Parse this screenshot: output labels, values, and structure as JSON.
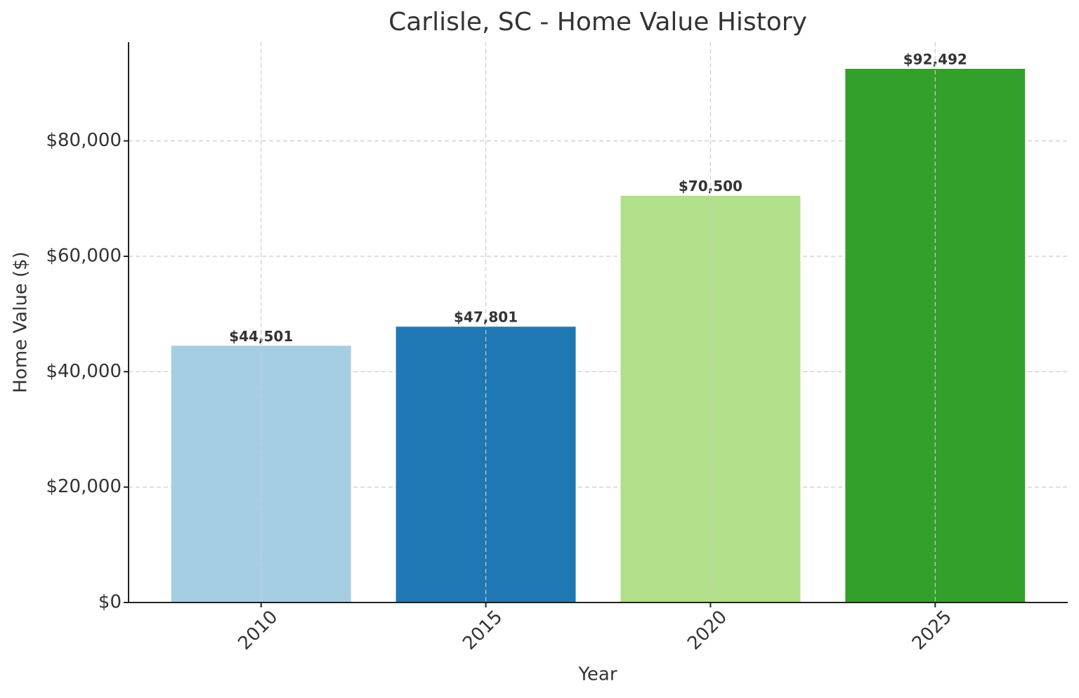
{
  "chart_data": {
    "type": "bar",
    "title": "Carlisle, SC - Home Value History",
    "xlabel": "Year",
    "ylabel": "Home Value ($)",
    "categories": [
      "2010",
      "2015",
      "2020",
      "2025"
    ],
    "values": [
      44501,
      47801,
      70500,
      92492
    ],
    "value_labels": [
      "$44,501",
      "$47,801",
      "$70,500",
      "$92,492"
    ],
    "colors": [
      "#a6cee3",
      "#1f78b4",
      "#b2df8a",
      "#33a02c"
    ],
    "ylim": [
      0,
      97116.6
    ],
    "yticks": [
      {
        "value": 0,
        "label": "$0"
      },
      {
        "value": 20000,
        "label": "$20,000"
      },
      {
        "value": 40000,
        "label": "$40,000"
      },
      {
        "value": 60000,
        "label": "$60,000"
      },
      {
        "value": 80000,
        "label": "$80,000"
      }
    ],
    "grid": true
  }
}
